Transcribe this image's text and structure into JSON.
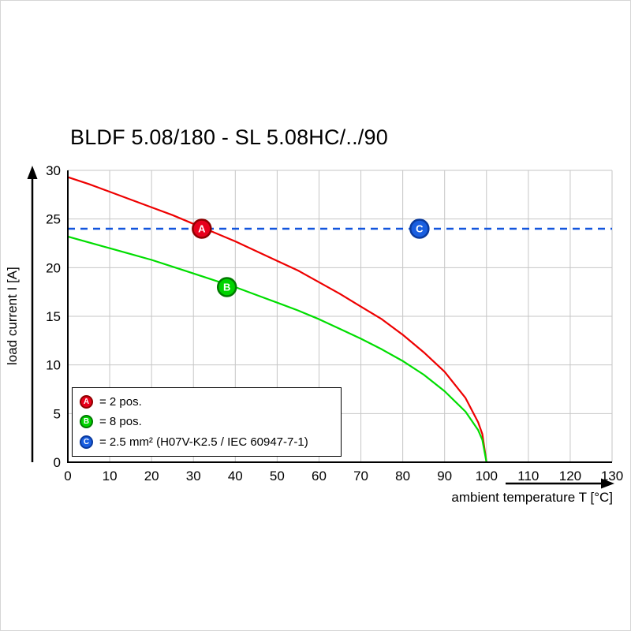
{
  "chart": {
    "title": "BLDF 5.08/180 - SL 5.08HC/../90",
    "y_axis_label": "load current I [A]",
    "x_axis_label": "ambient temperature T [°C]"
  },
  "legend": {
    "items": [
      {
        "label": "A",
        "text": "= 2 pos.",
        "color": "#e8001c",
        "border": "#8f0000"
      },
      {
        "label": "B",
        "text": "= 8 pos.",
        "color": "#00d400",
        "border": "#007a00"
      },
      {
        "label": "C",
        "text": "= 2.5 mm² (H07V-K2.5 / IEC 60947-7-1)",
        "color": "#1a5fe0",
        "border": "#0a3a9e"
      }
    ]
  },
  "chart_data": {
    "type": "line",
    "title": "BLDF 5.08/180 - SL 5.08HC/../90",
    "xlabel": "ambient temperature T [°C]",
    "ylabel": "load current I [A]",
    "xlim": [
      0,
      130
    ],
    "ylim": [
      0,
      30
    ],
    "x_ticks": [
      0,
      10,
      20,
      30,
      40,
      50,
      60,
      70,
      80,
      90,
      100,
      110,
      120,
      130
    ],
    "y_ticks": [
      0,
      5,
      10,
      15,
      20,
      25,
      30
    ],
    "grid": true,
    "grid_color": "#c6c6c6",
    "legend_position": "lower-left",
    "series": [
      {
        "name": "A = 2 pos.",
        "color": "#ee0000",
        "points": [
          [
            0,
            29.3
          ],
          [
            5,
            28.6
          ],
          [
            10,
            27.8
          ],
          [
            15,
            27.0
          ],
          [
            20,
            26.2
          ],
          [
            25,
            25.4
          ],
          [
            30,
            24.5
          ],
          [
            35,
            23.6
          ],
          [
            40,
            22.7
          ],
          [
            45,
            21.7
          ],
          [
            50,
            20.7
          ],
          [
            55,
            19.7
          ],
          [
            60,
            18.5
          ],
          [
            65,
            17.3
          ],
          [
            70,
            16.0
          ],
          [
            75,
            14.7
          ],
          [
            80,
            13.1
          ],
          [
            85,
            11.3
          ],
          [
            90,
            9.3
          ],
          [
            95,
            6.6
          ],
          [
            98,
            4.1
          ],
          [
            99,
            2.9
          ],
          [
            100,
            0
          ]
        ]
      },
      {
        "name": "B = 8 pos.",
        "color": "#00dd00",
        "points": [
          [
            0,
            23.2
          ],
          [
            5,
            22.6
          ],
          [
            10,
            22.0
          ],
          [
            15,
            21.4
          ],
          [
            20,
            20.8
          ],
          [
            25,
            20.1
          ],
          [
            30,
            19.4
          ],
          [
            35,
            18.7
          ],
          [
            40,
            18.0
          ],
          [
            45,
            17.2
          ],
          [
            50,
            16.4
          ],
          [
            55,
            15.6
          ],
          [
            60,
            14.7
          ],
          [
            65,
            13.7
          ],
          [
            70,
            12.7
          ],
          [
            75,
            11.6
          ],
          [
            80,
            10.4
          ],
          [
            85,
            9.0
          ],
          [
            90,
            7.3
          ],
          [
            95,
            5.2
          ],
          [
            98,
            3.3
          ],
          [
            99,
            2.3
          ],
          [
            100,
            0
          ]
        ]
      }
    ],
    "reference_line": {
      "name": "C = 2.5 mm² (H07V-K2.5 / IEC 60947-7-1)",
      "value": 24,
      "color": "#1255dd",
      "style": "dashed"
    },
    "markers": [
      {
        "label": "A",
        "x": 32,
        "y": 24,
        "fill": "#e8001c",
        "stroke": "#8f0000"
      },
      {
        "label": "B",
        "x": 38,
        "y": 18,
        "fill": "#00d400",
        "stroke": "#007a00"
      },
      {
        "label": "C",
        "x": 84,
        "y": 24,
        "fill": "#1a5fe0",
        "stroke": "#0a3a9e"
      }
    ]
  }
}
